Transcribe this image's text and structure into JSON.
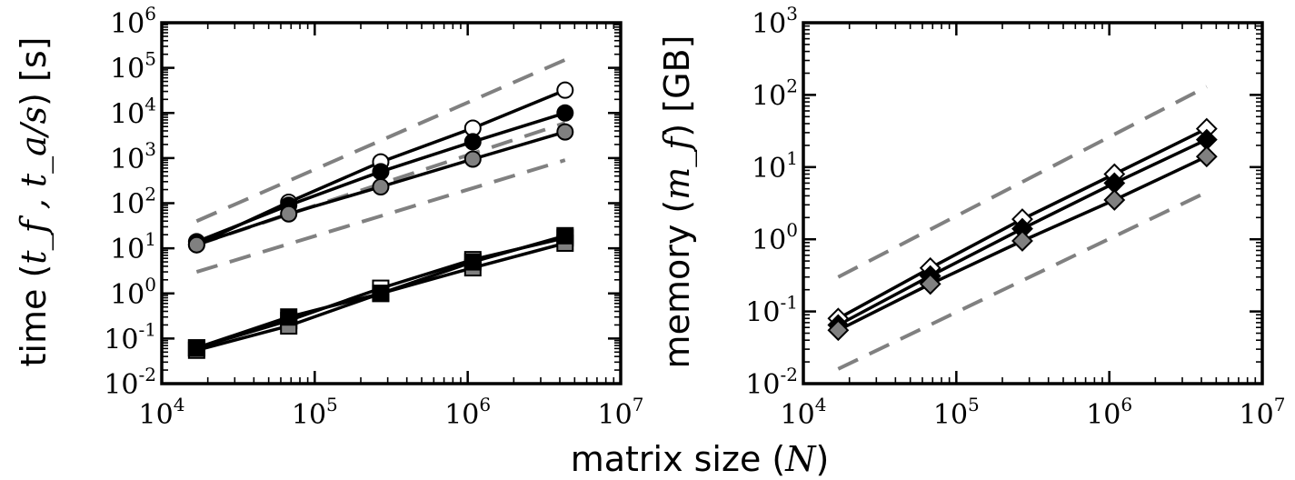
{
  "chart_data": [
    {
      "type": "line",
      "log_x": true,
      "log_y": true,
      "xlim": [
        10000,
        10000000
      ],
      "ylim": [
        0.01,
        1000000
      ],
      "x_tick_exponents": [
        4,
        5,
        6,
        7
      ],
      "y_tick_exponents": [
        -2,
        -1,
        0,
        1,
        2,
        3,
        4,
        5,
        6
      ],
      "ylabel_text": "time (",
      "ylabel_math": "t_f , t_a/s",
      "ylabel_unit": ") [s]",
      "grid": false,
      "x": [
        16900,
        67600,
        270000,
        1080000,
        4330000
      ],
      "series": [
        {
          "marker": "circle",
          "fill": "#ffffff",
          "values": [
            12,
            105,
            820,
            4600,
            32000
          ]
        },
        {
          "marker": "circle",
          "fill": "#000000",
          "values": [
            14,
            90,
            500,
            2300,
            10000
          ]
        },
        {
          "marker": "circle",
          "fill": "#808080",
          "values": [
            12,
            58,
            230,
            950,
            3800
          ]
        },
        {
          "marker": "square",
          "fill": "#ffffff",
          "values": [
            0.062,
            0.25,
            1.3,
            5.6,
            17
          ]
        },
        {
          "marker": "square",
          "fill": "#808080",
          "values": [
            0.055,
            0.19,
            1.0,
            3.7,
            13
          ]
        },
        {
          "marker": "square",
          "fill": "#000000",
          "values": [
            0.062,
            0.3,
            1.0,
            5.0,
            19
          ]
        }
      ],
      "reference_lines": [
        {
          "x": [
            16900,
            4330000
          ],
          "y": [
            40,
            150000
          ]
        },
        {
          "x": [
            16900,
            4330000
          ],
          "y": [
            12,
            6000
          ]
        },
        {
          "x": [
            16900,
            4330000
          ],
          "y": [
            3,
            900
          ]
        }
      ]
    },
    {
      "type": "line",
      "log_x": true,
      "log_y": true,
      "xlim": [
        10000,
        10000000
      ],
      "ylim": [
        0.01,
        1000
      ],
      "x_tick_exponents": [
        4,
        5,
        6,
        7
      ],
      "y_tick_exponents": [
        -2,
        -1,
        0,
        1,
        2,
        3
      ],
      "ylabel_text": "memory (",
      "ylabel_math": "m_f",
      "ylabel_unit": ") [GB]",
      "grid": false,
      "x": [
        16900,
        67600,
        270000,
        1080000,
        4330000
      ],
      "series": [
        {
          "marker": "diamond",
          "fill": "#ffffff",
          "values": [
            0.08,
            0.4,
            1.9,
            8.0,
            34
          ]
        },
        {
          "marker": "diamond",
          "fill": "#000000",
          "values": [
            0.065,
            0.31,
            1.4,
            6.0,
            24
          ]
        },
        {
          "marker": "diamond",
          "fill": "#808080",
          "values": [
            0.055,
            0.24,
            0.95,
            3.5,
            14
          ]
        }
      ],
      "reference_lines": [
        {
          "x": [
            16900,
            4330000
          ],
          "y": [
            0.3,
            130
          ]
        },
        {
          "x": [
            16900,
            4330000
          ],
          "y": [
            0.016,
            4.5
          ]
        }
      ]
    }
  ],
  "xlabel_text": "matrix size (",
  "xlabel_math": "N",
  "xlabel_close": ")"
}
